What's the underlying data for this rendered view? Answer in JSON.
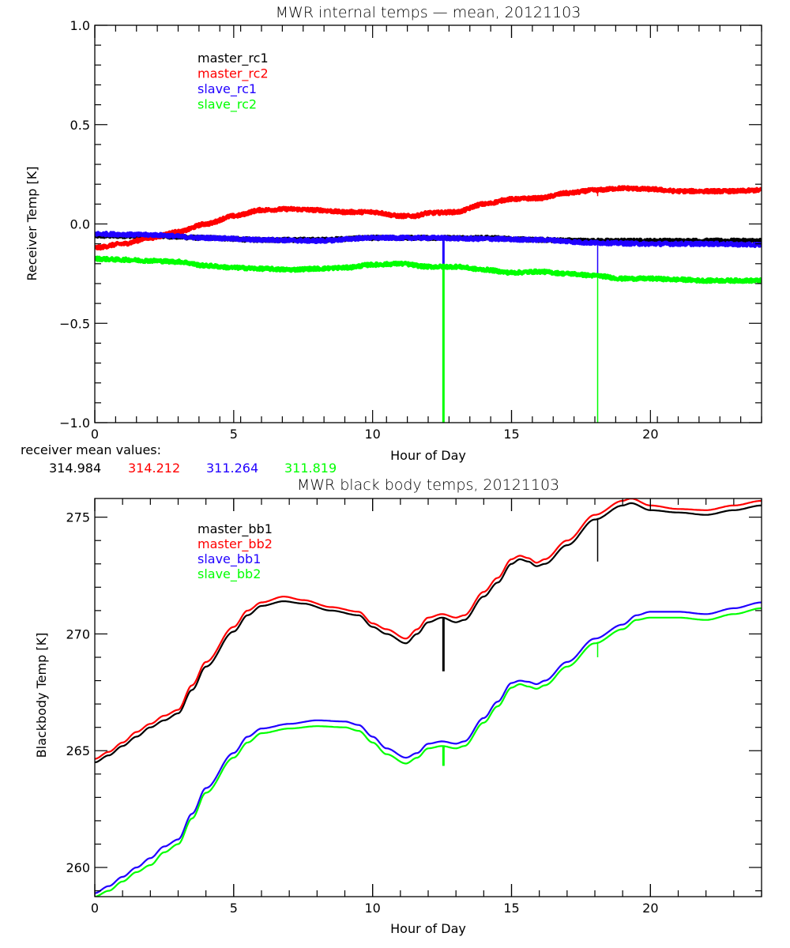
{
  "colors": {
    "black": "#000000",
    "red": "#ff0000",
    "blue": "#2000ff",
    "green": "#00ff00"
  },
  "chart_data": [
    {
      "type": "line",
      "title": "MWR internal temps — mean, 20121103",
      "xlabel": "Hour of Day",
      "ylabel": "Receiver Temp [K]",
      "xlim": [
        0,
        24
      ],
      "ylim": [
        -1.0,
        1.0
      ],
      "xticks": [
        0,
        5,
        10,
        15,
        20
      ],
      "xtick_labels": [
        "0",
        "5",
        "10",
        "15",
        "20"
      ],
      "x_minor_step": 0.75,
      "yticks": [
        -1.0,
        -0.5,
        0.0,
        0.5,
        1.0
      ],
      "ytick_labels": [
        "−1.0",
        "−0.5",
        "0.0",
        "0.5",
        "1.0"
      ],
      "y_minor_step": 0.1,
      "grid": false,
      "legend_position": "top-left",
      "noise": 0.008,
      "series": [
        {
          "name": "master_rc1",
          "color": "#000000",
          "x": [
            0,
            2,
            4,
            6,
            8,
            10,
            12,
            14,
            16,
            18,
            20,
            22,
            24
          ],
          "y": [
            -0.06,
            -0.06,
            -0.07,
            -0.08,
            -0.08,
            -0.07,
            -0.07,
            -0.07,
            -0.08,
            -0.085,
            -0.085,
            -0.085,
            -0.085
          ],
          "spikes": []
        },
        {
          "name": "master_rc2",
          "color": "#ff0000",
          "x": [
            0,
            1,
            2,
            3,
            4,
            5,
            6,
            7,
            8,
            9,
            10,
            11,
            11.5,
            12,
            13,
            14,
            15,
            16,
            17,
            18,
            19,
            20,
            21,
            22,
            23,
            24
          ],
          "y": [
            -0.12,
            -0.1,
            -0.07,
            -0.04,
            0.0,
            0.04,
            0.07,
            0.075,
            0.07,
            0.06,
            0.06,
            0.04,
            0.04,
            0.055,
            0.06,
            0.1,
            0.125,
            0.13,
            0.155,
            0.17,
            0.18,
            0.175,
            0.165,
            0.165,
            0.165,
            0.17
          ],
          "spikes": [
            {
              "x": 18.1,
              "to": 0.14
            }
          ]
        },
        {
          "name": "slave_rc1",
          "color": "#2000ff",
          "x": [
            0,
            2,
            4,
            6,
            8,
            10,
            12,
            14,
            16,
            18,
            20,
            22,
            24
          ],
          "y": [
            -0.05,
            -0.055,
            -0.07,
            -0.08,
            -0.085,
            -0.07,
            -0.07,
            -0.075,
            -0.08,
            -0.095,
            -0.1,
            -0.1,
            -0.105
          ],
          "spikes": [
            {
              "x": 12.55,
              "to": -0.21
            },
            {
              "x": 18.1,
              "to": -0.26
            }
          ]
        },
        {
          "name": "slave_rc2",
          "color": "#00ff00",
          "x": [
            0,
            1,
            2,
            3,
            4,
            5,
            6,
            7,
            8,
            9,
            10,
            11,
            12,
            13,
            14,
            15,
            16,
            17,
            18,
            19,
            20,
            21,
            22,
            23,
            24
          ],
          "y": [
            -0.175,
            -0.18,
            -0.185,
            -0.19,
            -0.21,
            -0.22,
            -0.225,
            -0.23,
            -0.225,
            -0.22,
            -0.205,
            -0.2,
            -0.215,
            -0.215,
            -0.23,
            -0.245,
            -0.24,
            -0.25,
            -0.26,
            -0.275,
            -0.275,
            -0.28,
            -0.285,
            -0.285,
            -0.285
          ],
          "spikes": [
            {
              "x": 12.55,
              "to": -1.0
            },
            {
              "x": 18.1,
              "to": -1.0
            }
          ]
        }
      ],
      "annotation": {
        "label": "receiver mean values:",
        "values": [
          {
            "text": "314.984",
            "color": "#000000"
          },
          {
            "text": "314.212",
            "color": "#ff0000"
          },
          {
            "text": "311.264",
            "color": "#2000ff"
          },
          {
            "text": "311.819",
            "color": "#00ff00"
          }
        ]
      }
    },
    {
      "type": "line",
      "title": "MWR black body temps, 20121103",
      "xlabel": "Hour of Day",
      "ylabel": "Blackbody Temp [K]",
      "xlim": [
        0,
        24
      ],
      "ylim": [
        258.75,
        275.8
      ],
      "xticks": [
        0,
        5,
        10,
        15,
        20
      ],
      "xtick_labels": [
        "0",
        "5",
        "10",
        "15",
        "20"
      ],
      "x_minor_step": 1,
      "yticks": [
        260,
        265,
        270,
        275
      ],
      "ytick_labels": [
        "260",
        "265",
        "270",
        "275"
      ],
      "y_minor_step": 1,
      "grid": false,
      "legend_position": "top-left",
      "noise": 0,
      "series": [
        {
          "name": "master_bb1",
          "color": "#000000",
          "x": [
            0,
            0.5,
            1,
            1.5,
            2,
            2.5,
            3,
            3.5,
            4,
            5,
            5.5,
            6,
            6.8,
            7.5,
            8.5,
            9.5,
            10,
            10.5,
            11.2,
            11.6,
            12,
            12.5,
            13,
            13.3,
            14,
            14.5,
            15,
            15.3,
            15.6,
            15.9,
            16.2,
            17,
            18,
            19,
            19.3,
            20,
            21,
            22,
            23,
            24
          ],
          "y": [
            264.5,
            264.8,
            265.2,
            265.6,
            266.0,
            266.3,
            266.6,
            267.6,
            268.6,
            270.1,
            270.8,
            271.2,
            271.4,
            271.3,
            271.0,
            270.8,
            270.3,
            270.0,
            269.6,
            270.0,
            270.5,
            270.7,
            270.5,
            270.6,
            271.6,
            272.2,
            273.0,
            273.2,
            273.1,
            272.9,
            273.0,
            273.8,
            274.9,
            275.5,
            275.6,
            275.3,
            275.2,
            275.1,
            275.3,
            275.5
          ],
          "spikes": [
            {
              "x": 12.55,
              "to": 268.4
            },
            {
              "x": 18.1,
              "to": 273.1
            }
          ]
        },
        {
          "name": "master_bb2",
          "color": "#ff0000",
          "x": [
            0,
            0.5,
            1,
            1.5,
            2,
            2.5,
            3,
            3.5,
            4,
            5,
            5.5,
            6,
            6.8,
            7.5,
            8.5,
            9.5,
            10,
            10.5,
            11.2,
            11.6,
            12,
            12.5,
            13,
            13.3,
            14,
            14.5,
            15,
            15.3,
            15.6,
            15.9,
            16.2,
            17,
            18,
            19,
            19.3,
            20,
            21,
            22,
            23,
            24
          ],
          "y": [
            264.65,
            264.95,
            265.35,
            265.8,
            266.15,
            266.5,
            266.75,
            267.8,
            268.8,
            270.3,
            271.0,
            271.35,
            271.6,
            271.45,
            271.15,
            270.95,
            270.45,
            270.2,
            269.8,
            270.2,
            270.7,
            270.85,
            270.7,
            270.8,
            271.8,
            272.4,
            273.2,
            273.35,
            273.25,
            273.05,
            273.2,
            274.0,
            275.1,
            275.7,
            275.8,
            275.5,
            275.35,
            275.3,
            275.5,
            275.7
          ],
          "spikes": []
        },
        {
          "name": "slave_bb1",
          "color": "#2000ff",
          "x": [
            0,
            0.5,
            1,
            1.5,
            2,
            2.5,
            3,
            3.5,
            4,
            5,
            5.5,
            6,
            7,
            8,
            9,
            9.5,
            10,
            10.5,
            11.2,
            11.6,
            12,
            12.5,
            13,
            13.3,
            14,
            14.5,
            15,
            15.3,
            15.6,
            15.9,
            16.2,
            17,
            18,
            19,
            19.5,
            20,
            21,
            22,
            23,
            24
          ],
          "y": [
            258.9,
            259.2,
            259.6,
            260.0,
            260.4,
            260.9,
            261.2,
            262.3,
            263.4,
            264.9,
            265.6,
            265.95,
            266.15,
            266.3,
            266.25,
            266.1,
            265.6,
            265.1,
            264.7,
            264.9,
            265.3,
            265.4,
            265.3,
            265.4,
            266.4,
            267.1,
            267.9,
            268.0,
            267.95,
            267.85,
            268.0,
            268.8,
            269.8,
            270.4,
            270.8,
            270.95,
            270.95,
            270.85,
            271.1,
            271.35
          ],
          "spikes": []
        },
        {
          "name": "slave_bb2",
          "color": "#00ff00",
          "x": [
            0,
            0.5,
            1,
            1.5,
            2,
            2.5,
            3,
            3.5,
            4,
            5,
            5.5,
            6,
            7,
            8,
            9,
            9.5,
            10,
            10.5,
            11.2,
            11.6,
            12,
            12.5,
            13,
            13.3,
            14,
            14.5,
            15,
            15.3,
            15.6,
            15.9,
            16.2,
            17,
            18,
            19,
            19.5,
            20,
            21,
            22,
            23,
            24
          ],
          "y": [
            258.75,
            259.0,
            259.4,
            259.8,
            260.1,
            260.65,
            261.0,
            262.1,
            263.2,
            264.7,
            265.35,
            265.75,
            265.95,
            266.05,
            266.0,
            265.85,
            265.35,
            264.85,
            264.45,
            264.7,
            265.1,
            265.2,
            265.1,
            265.2,
            266.2,
            266.9,
            267.7,
            267.85,
            267.75,
            267.65,
            267.8,
            268.6,
            269.6,
            270.2,
            270.6,
            270.7,
            270.7,
            270.6,
            270.85,
            271.1
          ],
          "spikes": [
            {
              "x": 12.55,
              "to": 264.35
            },
            {
              "x": 18.1,
              "to": 269.0
            }
          ]
        }
      ]
    }
  ]
}
